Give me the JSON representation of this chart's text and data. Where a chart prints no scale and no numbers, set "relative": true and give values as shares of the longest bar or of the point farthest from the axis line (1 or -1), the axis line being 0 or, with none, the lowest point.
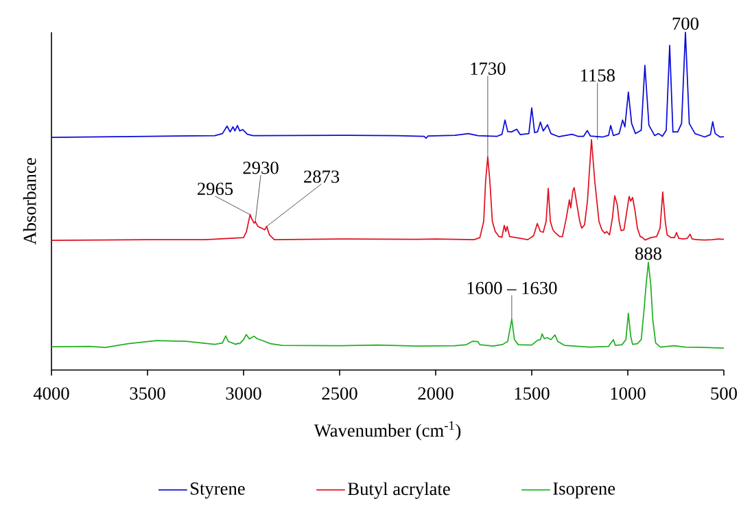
{
  "chart_data": {
    "type": "line",
    "xlabel": "Wavenumber (cm$^{-1}$)",
    "ylabel": "Absorbance",
    "relative": true,
    "xlim": [
      4000,
      500
    ],
    "xticks": [
      4000,
      3500,
      3000,
      2500,
      2000,
      1500,
      1000,
      500
    ],
    "legend": "bottom",
    "marker": "none",
    "line_style": "solid",
    "annotations": [
      {
        "text": "700",
        "x": 700,
        "y": 1.0
      },
      {
        "text": "1730",
        "x": 1729,
        "y": 0.631
      },
      {
        "text": "1158",
        "x": 1158,
        "y": 0.682
      },
      {
        "text": "2965",
        "x": 2966,
        "y": 0.46
      },
      {
        "text": "2930",
        "x": 2939,
        "y": 0.439
      },
      {
        "text": "2873",
        "x": 2880,
        "y": 0.425
      },
      {
        "text": "1600 – 1630",
        "x": 1604,
        "y": 0.15
      },
      {
        "text": "888",
        "x": 893,
        "y": 0.319
      }
    ],
    "series": [
      {
        "name": "Styrene",
        "color": "#0a0ad8",
        "x": [
          4000,
          3500,
          3150,
          3110,
          3086,
          3070,
          3055,
          3045,
          3032,
          3020,
          3005,
          2980,
          2950,
          2500,
          2200,
          2060,
          2050,
          2040,
          1900,
          1830,
          1780,
          1680,
          1655,
          1639,
          1625,
          1605,
          1578,
          1560,
          1515,
          1500,
          1485,
          1470,
          1455,
          1440,
          1418,
          1400,
          1360,
          1320,
          1290,
          1260,
          1230,
          1211,
          1195,
          1130,
          1100,
          1089,
          1075,
          1045,
          1027,
          1015,
          997,
          980,
          960,
          930,
          911,
          890,
          860,
          840,
          820,
          800,
          782,
          765,
          740,
          720,
          700,
          680,
          650,
          600,
          570,
          558,
          545,
          520,
          500
        ],
        "values": [
          0.689,
          0.692,
          0.694,
          0.7,
          0.722,
          0.705,
          0.72,
          0.708,
          0.724,
          0.708,
          0.712,
          0.698,
          0.694,
          0.695,
          0.694,
          0.692,
          0.686,
          0.693,
          0.695,
          0.7,
          0.694,
          0.692,
          0.698,
          0.74,
          0.706,
          0.705,
          0.713,
          0.697,
          0.7,
          0.776,
          0.703,
          0.705,
          0.734,
          0.708,
          0.726,
          0.7,
          0.691,
          0.695,
          0.698,
          0.692,
          0.692,
          0.709,
          0.693,
          0.69,
          0.695,
          0.724,
          0.694,
          0.7,
          0.74,
          0.72,
          0.823,
          0.73,
          0.7,
          0.71,
          0.902,
          0.725,
          0.694,
          0.7,
          0.692,
          0.71,
          0.961,
          0.705,
          0.705,
          0.73,
          1.0,
          0.73,
          0.7,
          0.69,
          0.697,
          0.735,
          0.7,
          0.69,
          0.691
        ]
      },
      {
        "name": "Butyl acrylate",
        "color": "#e01020",
        "x": [
          4000,
          3500,
          3200,
          3000,
          2985,
          2966,
          2955,
          2945,
          2939,
          2925,
          2900,
          2890,
          2880,
          2865,
          2840,
          2500,
          2100,
          2000,
          1800,
          1770,
          1750,
          1740,
          1729,
          1718,
          1705,
          1690,
          1670,
          1655,
          1643,
          1635,
          1628,
          1615,
          1520,
          1490,
          1471,
          1455,
          1440,
          1425,
          1414,
          1403,
          1390,
          1380,
          1355,
          1340,
          1320,
          1304,
          1297,
          1286,
          1279,
          1265,
          1250,
          1240,
          1225,
          1210,
          1189,
          1172,
          1150,
          1135,
          1120,
          1110,
          1095,
          1080,
          1068,
          1055,
          1045,
          1035,
          1020,
          1005,
          993,
          985,
          975,
          962,
          950,
          935,
          925,
          910,
          880,
          850,
          832,
          818,
          805,
          795,
          775,
          757,
          746,
          735,
          710,
          690,
          676,
          665,
          640,
          600,
          560,
          530,
          500
        ],
        "values": [
          0.384,
          0.386,
          0.386,
          0.392,
          0.41,
          0.46,
          0.445,
          0.435,
          0.439,
          0.425,
          0.418,
          0.415,
          0.425,
          0.4,
          0.386,
          0.388,
          0.387,
          0.388,
          0.386,
          0.392,
          0.44,
          0.56,
          0.631,
          0.56,
          0.44,
          0.41,
          0.395,
          0.393,
          0.428,
          0.41,
          0.425,
          0.395,
          0.386,
          0.398,
          0.434,
          0.41,
          0.408,
          0.44,
          0.538,
          0.44,
          0.415,
          0.408,
          0.395,
          0.395,
          0.45,
          0.504,
          0.48,
          0.53,
          0.54,
          0.49,
          0.44,
          0.42,
          0.43,
          0.5,
          0.682,
          0.56,
          0.44,
          0.415,
          0.405,
          0.41,
          0.4,
          0.45,
          0.516,
          0.49,
          0.44,
          0.413,
          0.415,
          0.47,
          0.514,
          0.5,
          0.511,
          0.47,
          0.42,
          0.395,
          0.393,
          0.385,
          0.392,
          0.395,
          0.42,
          0.527,
          0.44,
          0.4,
          0.392,
          0.392,
          0.407,
          0.39,
          0.388,
          0.39,
          0.402,
          0.388,
          0.386,
          0.385,
          0.386,
          0.388,
          0.387
        ]
      },
      {
        "name": "Isoprene",
        "color": "#20b020",
        "x": [
          4000,
          3800,
          3720,
          3600,
          3453,
          3300,
          3150,
          3110,
          3093,
          3080,
          3040,
          3030,
          3020,
          3000,
          2986,
          2970,
          2955,
          2945,
          2930,
          2900,
          2860,
          2800,
          2500,
          2300,
          2100,
          1900,
          1840,
          1809,
          1780,
          1770,
          1700,
          1650,
          1625,
          1604,
          1590,
          1570,
          1500,
          1470,
          1455,
          1446,
          1435,
          1420,
          1400,
          1379,
          1365,
          1330,
          1200,
          1100,
          1075,
          1065,
          1030,
          1010,
          997,
          985,
          975,
          950,
          930,
          915,
          905,
          893,
          880,
          870,
          855,
          830,
          760,
          700,
          600,
          500
        ],
        "values": [
          0.069,
          0.07,
          0.067,
          0.078,
          0.087,
          0.085,
          0.076,
          0.08,
          0.101,
          0.085,
          0.076,
          0.079,
          0.078,
          0.09,
          0.105,
          0.092,
          0.097,
          0.1,
          0.093,
          0.087,
          0.078,
          0.073,
          0.072,
          0.074,
          0.071,
          0.072,
          0.075,
          0.085,
          0.084,
          0.075,
          0.071,
          0.076,
          0.085,
          0.15,
          0.09,
          0.075,
          0.074,
          0.088,
          0.09,
          0.107,
          0.093,
          0.096,
          0.09,
          0.104,
          0.085,
          0.073,
          0.068,
          0.07,
          0.09,
          0.073,
          0.075,
          0.09,
          0.168,
          0.1,
          0.076,
          0.078,
          0.09,
          0.18,
          0.25,
          0.319,
          0.25,
          0.15,
          0.08,
          0.068,
          0.072,
          0.068,
          0.067,
          0.065
        ]
      }
    ]
  }
}
